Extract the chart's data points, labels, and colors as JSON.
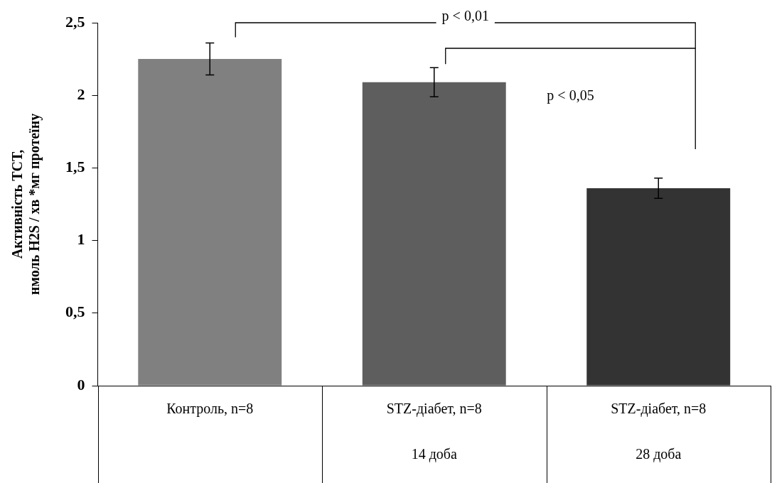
{
  "chart_data": {
    "type": "bar",
    "ylabel": "Активність ТСТ,\nнмоль H2S / хв *мг протеїну",
    "categories": [
      "Контроль, n=8",
      "STZ-діабет, n=8\n14 доба",
      "STZ-діабет, n=8\n28 доба"
    ],
    "values": [
      2.25,
      2.09,
      1.36
    ],
    "errors": [
      0.11,
      0.1,
      0.07
    ],
    "colors": [
      "#808080",
      "#5e5e5e",
      "#333333"
    ],
    "ylim": [
      0,
      2.5
    ],
    "yticks": [
      {
        "value": 0,
        "label": "0"
      },
      {
        "value": 0.5,
        "label": "0,5"
      },
      {
        "value": 1,
        "label": "1"
      },
      {
        "value": 1.5,
        "label": "1,5"
      },
      {
        "value": 2,
        "label": "2"
      },
      {
        "value": 2.5,
        "label": "2,5"
      }
    ],
    "grid": false,
    "legend": false,
    "annotations": [
      "p < 0,01",
      "p < 0,05"
    ]
  }
}
